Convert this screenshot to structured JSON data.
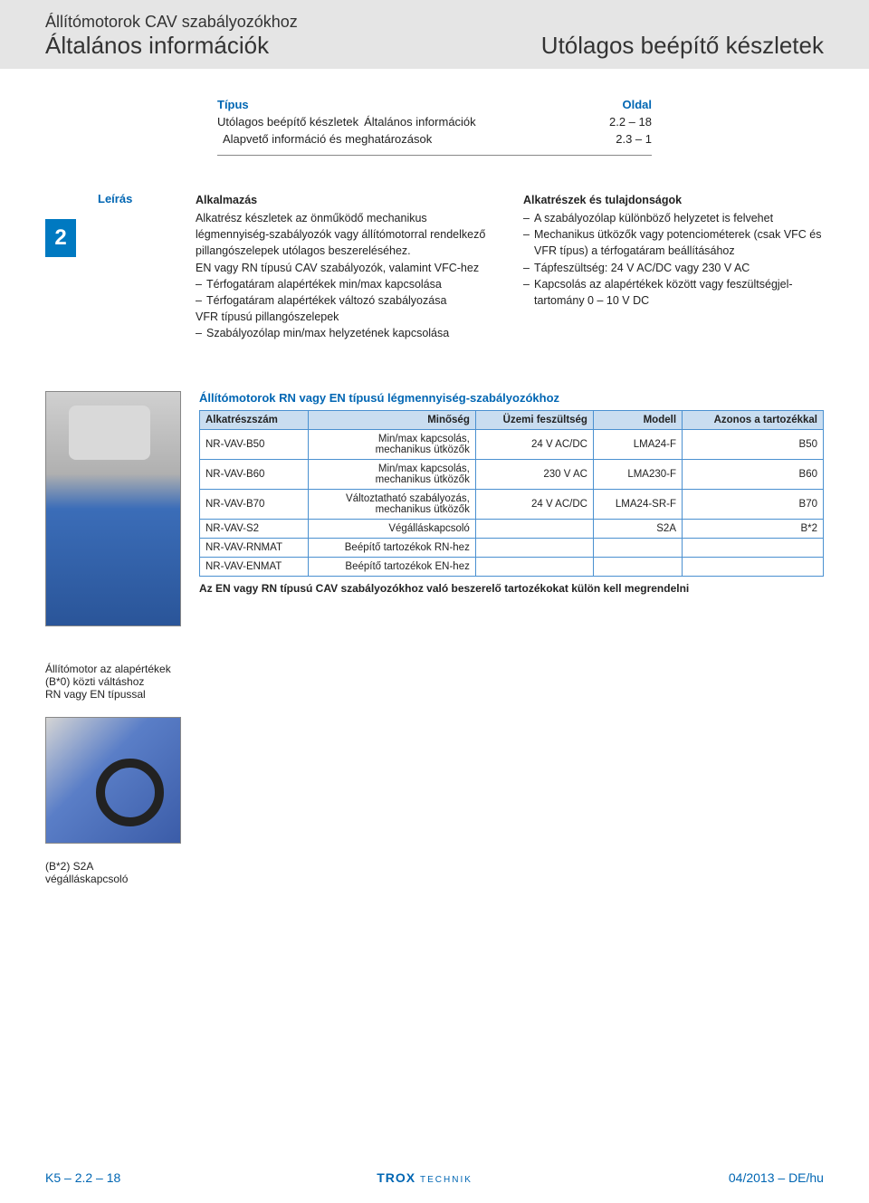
{
  "header": {
    "line1": "Állítómotorok CAV szabályozókhoz",
    "line2_left": "Általános információk",
    "line2_right": "Utólagos beépítő készletek"
  },
  "toc": {
    "head_left": "Típus",
    "head_right": "Oldal",
    "rows": [
      {
        "l1": "Utólagos beépítő készletek",
        "l2": "Általános információk",
        "page": "2.2 – 18"
      },
      {
        "l1": "",
        "l2": "Alapvető információ és meghatározások",
        "page": "2.3 – 1"
      }
    ]
  },
  "section_badge": "2",
  "leiras_label": "Leírás",
  "col_left": {
    "title": "Alkalmazás",
    "para": "Alkatrész készletek az önműködő mechanikus légmennyiség-szabályozók vagy állítómotorral rendelkező pillangószelepek utólagos beszereléséhez.",
    "sub1": "EN vagy RN típusú CAV szabályozók, valamint VFC-hez",
    "bullets1": [
      "Térfogatáram alapértékek min/max kapcsolása",
      "Térfogatáram alapértékek változó szabályozása"
    ],
    "sub2": "VFR típusú pillangószelepek",
    "bullets2": [
      "Szabályozólap min/max helyzetének kapcsolása"
    ]
  },
  "col_right": {
    "title": "Alkatrészek és tulajdonságok",
    "bullets": [
      "A szabályozólap különböző helyzetet is felvehet",
      "Mechanikus ütközők vagy potenciométerek (csak VFC és VFR típus) a térfogatáram beállításához",
      "Tápfeszültség: 24 V AC/DC vagy 230 V AC",
      "Kapcsolás az alapértékek között vagy feszültségjel-tartomány 0 – 10 V DC"
    ]
  },
  "table": {
    "title": "Állítómotorok RN vagy EN típusú légmennyiség-szabályozókhoz",
    "columns": [
      "Alkatrészszám",
      "Minőség",
      "Üzemi feszültség",
      "Modell",
      "Azonos a tartozékkal"
    ],
    "col_align": [
      "left",
      "right",
      "right",
      "right",
      "right"
    ],
    "rows": [
      [
        "NR-VAV-B50",
        "Min/max kapcsolás, mechanikus ütközők",
        "24 V AC/DC",
        "LMA24-F",
        "B50"
      ],
      [
        "NR-VAV-B60",
        "Min/max kapcsolás, mechanikus ütközők",
        "230 V AC",
        "LMA230-F",
        "B60"
      ],
      [
        "NR-VAV-B70",
        "Változtatható szabályozás, mechanikus ütközők",
        "24 V AC/DC",
        "LMA24-SR-F",
        "B70"
      ],
      [
        "NR-VAV-S2",
        "Végálláskapcsoló",
        "",
        "S2A",
        "B*2"
      ],
      [
        "NR-VAV-RNMAT",
        "Beépítő tartozékok RN-hez",
        "",
        "",
        ""
      ],
      [
        "NR-VAV-ENMAT",
        "Beépítő tartozékok EN-hez",
        "",
        "",
        ""
      ]
    ],
    "note": "Az EN vagy RN típusú CAV szabályozókhoz való beszerelő tartozékokat külön kell megrendelni",
    "header_bg": "#c9ddf0",
    "border_color": "#4a90d0"
  },
  "caption1_lines": [
    "Állítómotor az alapértékek",
    "(B*0) közti váltáshoz",
    "RN vagy EN típussal"
  ],
  "caption2_lines": [
    "(B*2) S2A",
    "végálláskapcsoló"
  ],
  "footer": {
    "left": "K5 – 2.2 – 18",
    "logo": "TROX",
    "logo_sub": "TECHNIK",
    "right": "04/2013 – DE/hu"
  },
  "colors": {
    "brand_blue": "#0066b3",
    "badge_blue": "#0079c1",
    "header_grey": "#e5e5e5"
  }
}
